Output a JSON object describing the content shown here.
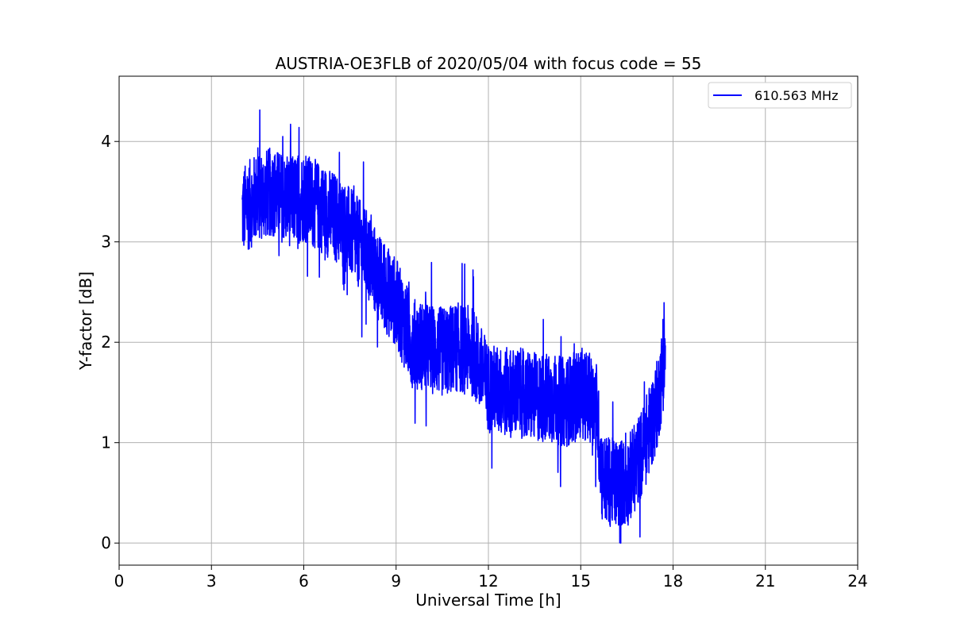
{
  "chart_data": {
    "type": "line",
    "title": "AUSTRIA-OE3FLB of 2020/05/04 with focus code = 55",
    "xlabel": "Universal Time [h]",
    "ylabel": "Y-factor [dB]",
    "xlim": [
      0,
      24
    ],
    "ylim": [
      -0.22,
      4.65
    ],
    "xticks": [
      0,
      3,
      6,
      9,
      12,
      15,
      18,
      21,
      24
    ],
    "yticks": [
      0,
      1,
      2,
      3,
      4
    ],
    "grid": true,
    "legend_position": "top-right",
    "series": [
      {
        "name": "610.563 MHz",
        "color": "#0000ff",
        "x_start": 4.0,
        "x_end": 17.75,
        "noise_amplitude": 0.45,
        "envelope": [
          {
            "x": 4.0,
            "y": 3.3
          },
          {
            "x": 4.5,
            "y": 3.45
          },
          {
            "x": 5.0,
            "y": 3.5
          },
          {
            "x": 5.5,
            "y": 3.4
          },
          {
            "x": 6.0,
            "y": 3.45
          },
          {
            "x": 6.5,
            "y": 3.35
          },
          {
            "x": 7.0,
            "y": 3.25
          },
          {
            "x": 7.5,
            "y": 3.1
          },
          {
            "x": 8.0,
            "y": 2.9
          },
          {
            "x": 8.5,
            "y": 2.6
          },
          {
            "x": 9.0,
            "y": 2.4
          },
          {
            "x": 9.5,
            "y": 2.0
          },
          {
            "x": 10.0,
            "y": 1.95
          },
          {
            "x": 10.5,
            "y": 1.9
          },
          {
            "x": 11.0,
            "y": 1.95
          },
          {
            "x": 11.5,
            "y": 1.9
          },
          {
            "x": 12.0,
            "y": 1.55
          },
          {
            "x": 12.5,
            "y": 1.5
          },
          {
            "x": 13.0,
            "y": 1.5
          },
          {
            "x": 13.5,
            "y": 1.45
          },
          {
            "x": 14.0,
            "y": 1.45
          },
          {
            "x": 14.5,
            "y": 1.4
          },
          {
            "x": 15.0,
            "y": 1.5
          },
          {
            "x": 15.5,
            "y": 1.4
          },
          {
            "x": 15.7,
            "y": 0.65
          },
          {
            "x": 16.0,
            "y": 0.6
          },
          {
            "x": 16.5,
            "y": 0.6
          },
          {
            "x": 17.0,
            "y": 0.9
          },
          {
            "x": 17.5,
            "y": 1.4
          },
          {
            "x": 17.75,
            "y": 1.9
          }
        ]
      }
    ]
  }
}
